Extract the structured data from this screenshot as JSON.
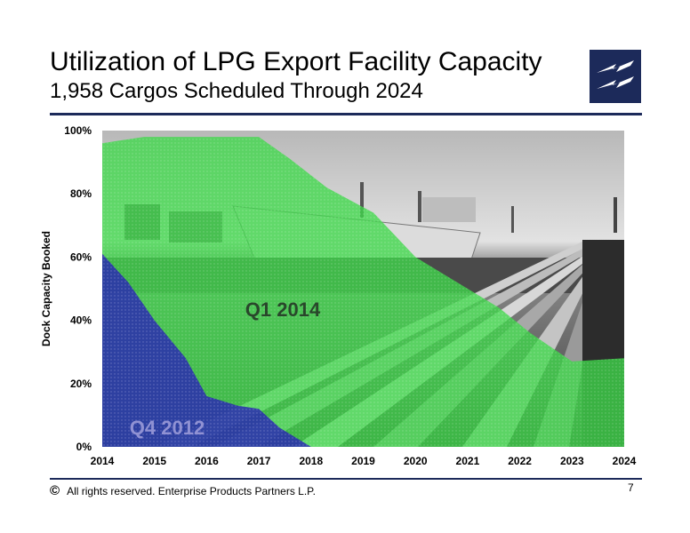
{
  "header": {
    "title": "Utilization of LPG Export Facility Capacity",
    "subtitle": "1,958 Cargos Scheduled Through 2024",
    "logo": "lightning-logo"
  },
  "footer": {
    "copyright_symbol": "©",
    "text": "All rights reserved. Enterprise Products Partners L.P.",
    "page_number": "7"
  },
  "colors": {
    "navy": "#1c2a5a",
    "green": "#3fd94a",
    "blue": "#2a2ab0"
  },
  "chart_data": {
    "type": "area",
    "title": "",
    "xlabel": "",
    "ylabel": "Dock Capacity Booked",
    "x": [
      2014,
      2015,
      2016,
      2017,
      2018,
      2019,
      2020,
      2021,
      2022,
      2023,
      2024
    ],
    "xlim": [
      2014,
      2024
    ],
    "ylim": [
      0,
      100
    ],
    "yticks": [
      "0%",
      "20%",
      "40%",
      "60%",
      "80%",
      "100%"
    ],
    "xticks": [
      "2014",
      "2015",
      "2016",
      "2017",
      "2018",
      "2019",
      "2020",
      "2021",
      "2022",
      "2023",
      "2024"
    ],
    "series": [
      {
        "name": "Q1 2014",
        "color": "#3fd94a",
        "points": [
          [
            2014,
            96
          ],
          [
            2014.8,
            98
          ],
          [
            2015.9,
            98
          ],
          [
            2017,
            98
          ],
          [
            2017.6,
            91
          ],
          [
            2018.3,
            82
          ],
          [
            2019.2,
            74
          ],
          [
            2020,
            60
          ],
          [
            2020.8,
            52
          ],
          [
            2021.6,
            44
          ],
          [
            2022.2,
            36
          ],
          [
            2023,
            27
          ],
          [
            2024,
            28
          ]
        ]
      },
      {
        "name": "Q4 2012",
        "color": "#2a2ab0",
        "points": [
          [
            2014,
            61
          ],
          [
            2014.5,
            52
          ],
          [
            2015,
            40
          ],
          [
            2015.6,
            28
          ],
          [
            2016,
            16
          ],
          [
            2016.6,
            13
          ],
          [
            2017,
            12
          ],
          [
            2017.4,
            6
          ],
          [
            2017.8,
            2
          ],
          [
            2018,
            0
          ],
          [
            2024,
            0
          ]
        ]
      }
    ],
    "annotations": [
      "Q1 2014",
      "Q4 2012"
    ],
    "grid": false,
    "legend": "none",
    "background": "photograph of LPG export terminal with docked ship and pipelines"
  }
}
